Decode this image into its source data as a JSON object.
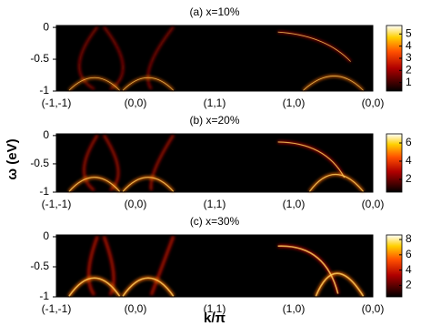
{
  "chart_data": [
    {
      "type": "heatmap",
      "title": "(a) x=10%",
      "categories": [
        "(-1,-1)",
        "(0,0)",
        "(1,1)",
        "(1,0)",
        "(0,0)"
      ],
      "ylim": [
        -1,
        0.03
      ],
      "yticks": [
        0,
        -0.5,
        -1
      ],
      "clim": [
        0.3,
        5.7
      ],
      "cticks": [
        1,
        2,
        3,
        4,
        5
      ]
    },
    {
      "type": "heatmap",
      "title": "(b) x=20%",
      "categories": [
        "(-1,-1)",
        "(0,0)",
        "(1,1)",
        "(1,0)",
        "(0,0)"
      ],
      "ylim": [
        -1,
        0.03
      ],
      "yticks": [
        0,
        -0.5,
        -1
      ],
      "clim": [
        0.6,
        7
      ],
      "cticks": [
        2,
        4,
        6
      ],
      "ylabel": "ω (eV)"
    },
    {
      "type": "heatmap",
      "title": "(c) x=30%",
      "categories": [
        "(-1,-1)",
        "(0,0)",
        "(1,1)",
        "(1,0)",
        "(0,0)"
      ],
      "ylim": [
        -1,
        0.03
      ],
      "yticks": [
        0,
        -0.5,
        -1
      ],
      "clim": [
        0.5,
        8.6
      ],
      "cticks": [
        2,
        4,
        6,
        8
      ],
      "xlabel": "k/π"
    }
  ]
}
